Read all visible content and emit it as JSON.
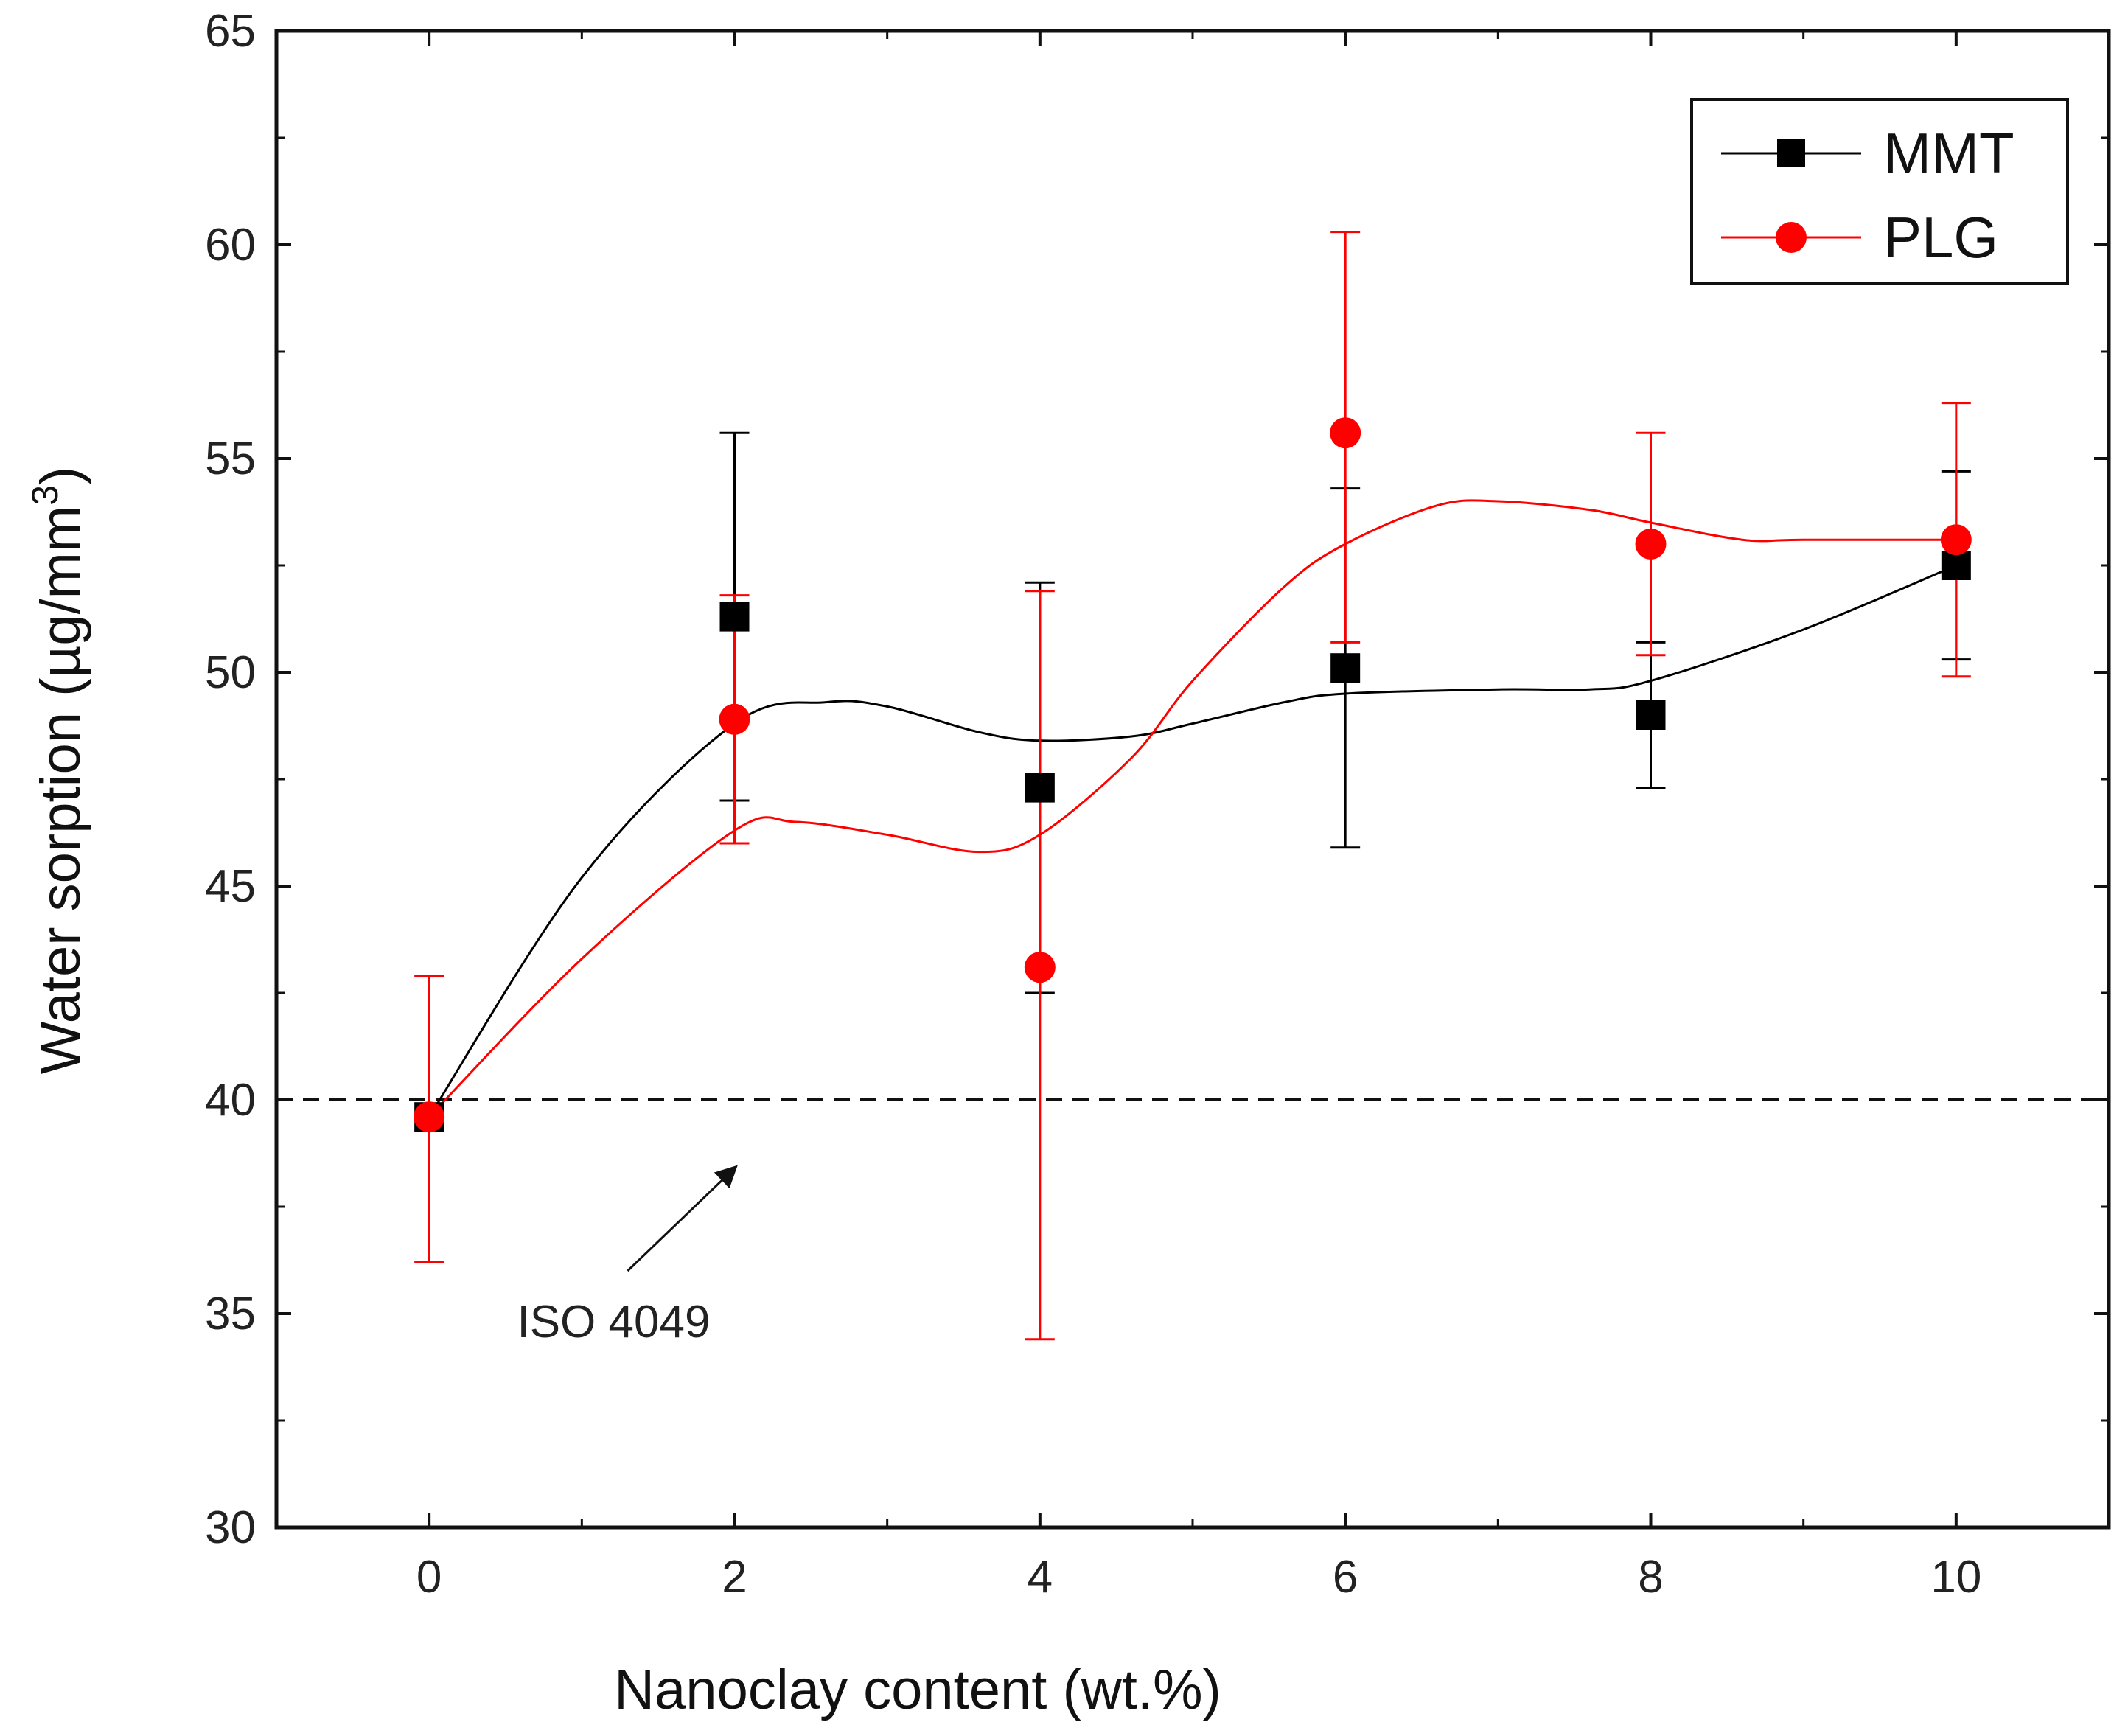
{
  "chart_data": {
    "type": "line",
    "title": "",
    "xlabel": "Nanoclay content (wt.%)",
    "ylabel": "Water sorption (µg/mm",
    "ylabel_superscript": "3",
    "ylabel_close": ")",
    "xlim": [
      -1,
      11
    ],
    "ylim": [
      30,
      65
    ],
    "x_ticks": [
      0,
      2,
      4,
      6,
      8,
      10
    ],
    "y_ticks": [
      30,
      35,
      40,
      45,
      50,
      55,
      60,
      65
    ],
    "grid": false,
    "legend_position": "top-right",
    "series": [
      {
        "name": "MMT",
        "color": "#000000",
        "marker": "square",
        "x": [
          0,
          2,
          4,
          6,
          8,
          10
        ],
        "y": [
          39.6,
          51.3,
          47.3,
          50.1,
          49.0,
          52.5
        ],
        "err_low": [
          39.6,
          47.0,
          42.5,
          45.9,
          47.3,
          50.3
        ],
        "err_high": [
          39.6,
          55.6,
          52.1,
          54.3,
          50.7,
          54.7
        ],
        "fit_curve": [
          [
            0,
            39.6
          ],
          [
            1,
            45.2
          ],
          [
            2,
            48.8
          ],
          [
            2.6,
            49.3
          ],
          [
            3,
            49.2
          ],
          [
            3.6,
            48.6
          ],
          [
            4,
            48.4
          ],
          [
            4.6,
            48.5
          ],
          [
            5,
            48.8
          ],
          [
            5.6,
            49.3
          ],
          [
            6,
            49.5
          ],
          [
            7,
            49.6
          ],
          [
            7.6,
            49.6
          ],
          [
            8,
            49.8
          ],
          [
            9,
            51.0
          ],
          [
            10,
            52.5
          ]
        ]
      },
      {
        "name": "PLG",
        "color": "#ff0000",
        "marker": "circle",
        "x": [
          0,
          2,
          4,
          6,
          8,
          10
        ],
        "y": [
          39.6,
          48.9,
          43.1,
          55.6,
          53.0,
          53.1
        ],
        "err_low": [
          36.2,
          46.0,
          34.4,
          50.7,
          50.4,
          49.9
        ],
        "err_high": [
          42.9,
          51.8,
          51.9,
          60.3,
          55.6,
          56.3
        ],
        "fit_curve": [
          [
            0,
            39.6
          ],
          [
            1,
            43.3
          ],
          [
            2,
            46.3
          ],
          [
            2.4,
            46.5
          ],
          [
            3,
            46.2
          ],
          [
            3.6,
            45.8
          ],
          [
            4,
            46.2
          ],
          [
            4.6,
            48.0
          ],
          [
            5,
            49.8
          ],
          [
            5.6,
            52.0
          ],
          [
            6,
            53.0
          ],
          [
            6.6,
            53.9
          ],
          [
            7,
            54.0
          ],
          [
            7.6,
            53.8
          ],
          [
            8,
            53.5
          ],
          [
            8.6,
            53.1
          ],
          [
            9,
            53.1
          ],
          [
            10,
            53.1
          ]
        ]
      }
    ],
    "reference_line": {
      "y": 40,
      "style": "dashed",
      "label": "ISO 4049"
    },
    "annotations": [
      {
        "text": "ISO 4049",
        "arrow_from": [
          1.3,
          36.0
        ],
        "arrow_to": [
          2.0,
          38.4
        ]
      }
    ]
  }
}
